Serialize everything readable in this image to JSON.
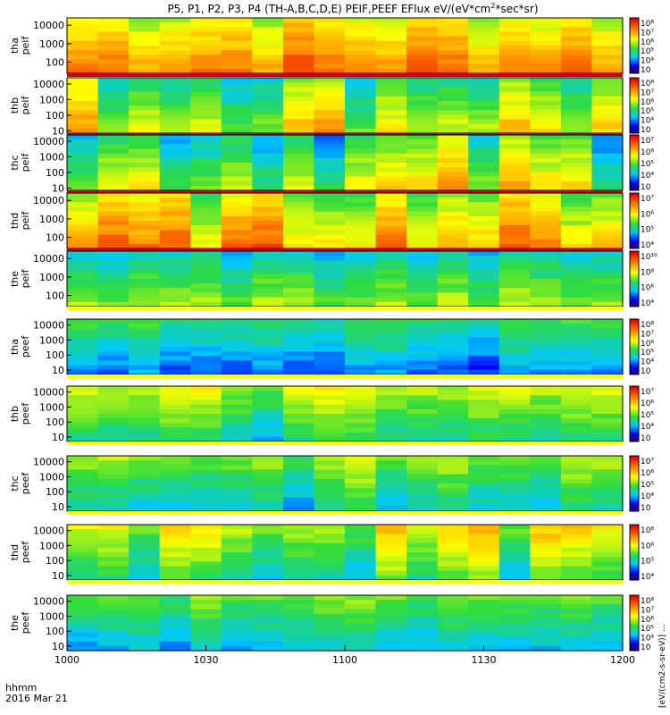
{
  "title": "P5, P1, P2, P3, P4 (TH-A,B,C,D,E) PEIF,PEEF EFlux eV/(eV*cm",
  "title_sup": "2",
  "title_tail": "*sec*sr)",
  "colorbar_unit_label": "[eV/(cm2-s-sr-eV)] ...",
  "time_axis": {
    "tick_labels": [
      "1000",
      "1030",
      "1100",
      "1130",
      "1200"
    ],
    "prefix_label": "hhmm",
    "date_label": "2016 Mar 21",
    "range_minutes": [
      0,
      120
    ]
  },
  "colors": {
    "low": "#1a0080",
    "mid": "#32c832",
    "high": "#e60000",
    "bar_red": "#cc0000",
    "bar_yellow": "#ffff00"
  },
  "chart_data": [
    {
      "type": "heatmap",
      "panel": "tha-peif",
      "ylabel": [
        "tha",
        "peif"
      ],
      "yticks": [
        "10000",
        "1000",
        "100"
      ],
      "cbar_ticks": [
        "10⁸",
        "10⁷",
        "10⁶",
        "10⁵",
        "10⁴",
        "10⁳"
      ],
      "ylog": true,
      "yrange": [
        25,
        25000
      ],
      "level": 0.72,
      "variation": 0.2,
      "bottom_band": "red"
    },
    {
      "type": "heatmap",
      "panel": "thb-peif",
      "ylabel": [
        "thb",
        "peif"
      ],
      "yticks": [
        "10000",
        "1000",
        "100",
        "10"
      ],
      "cbar_ticks": [
        "10⁸",
        "10⁷",
        "10⁶",
        "10⁵",
        "10⁴",
        "10⁳"
      ],
      "ylog": true,
      "yrange": [
        7,
        25000
      ],
      "level": 0.55,
      "variation": 0.35,
      "bottom_band": "red"
    },
    {
      "type": "heatmap",
      "panel": "thc-peif",
      "ylabel": [
        "thc",
        "peif"
      ],
      "yticks": [
        "10000",
        "1000",
        "100",
        "10"
      ],
      "cbar_ticks": [
        "10⁷",
        "10⁶",
        "10⁵",
        "10⁴",
        "10⁳"
      ],
      "ylog": true,
      "yrange": [
        7,
        25000
      ],
      "level": 0.5,
      "variation": 0.4,
      "bottom_band": "red"
    },
    {
      "type": "heatmap",
      "panel": "thd-peif",
      "ylabel": [
        "thd",
        "peif"
      ],
      "yticks": [
        "10000",
        "1000",
        "100"
      ],
      "cbar_ticks": [
        "10⁷",
        "10⁶",
        "10⁵",
        "10⁴"
      ],
      "ylog": true,
      "yrange": [
        25,
        25000
      ],
      "level": 0.65,
      "variation": 0.25,
      "bottom_band": "red"
    },
    {
      "type": "heatmap",
      "panel": "the-peif",
      "ylabel": [
        "the",
        "peif"
      ],
      "yticks": [
        "10000",
        "1000",
        "100"
      ],
      "cbar_ticks": [
        "10¹⁰",
        "10⁸",
        "10⁶",
        "10⁴"
      ],
      "ylog": true,
      "yrange": [
        25,
        25000
      ],
      "level": 0.42,
      "variation": 0.12,
      "bottom_band": "yellow"
    },
    {
      "type": "heatmap",
      "panel": "tha-peef",
      "ylabel": [
        "tha",
        "peef"
      ],
      "yticks": [
        "10000",
        "1000",
        "100",
        "10"
      ],
      "cbar_ticks": [
        "10⁸",
        "10⁷",
        "10⁶",
        "10⁵",
        "10⁴",
        "10⁳"
      ],
      "ylog": true,
      "yrange": [
        5,
        25000
      ],
      "level": 0.32,
      "variation": 0.15,
      "bottom_band": "yellow"
    },
    {
      "type": "heatmap",
      "panel": "thb-peef",
      "ylabel": [
        "thb",
        "peef"
      ],
      "yticks": [
        "10000",
        "1000",
        "100",
        "10"
      ],
      "cbar_ticks": [
        "10⁷",
        "10⁶",
        "10⁵",
        "10⁴",
        "10⁳"
      ],
      "ylog": true,
      "yrange": [
        5,
        25000
      ],
      "level": 0.45,
      "variation": 0.2,
      "bottom_band": "yellow"
    },
    {
      "type": "heatmap",
      "panel": "thc-peef",
      "ylabel": [
        "thc",
        "peef"
      ],
      "yticks": [
        "10000",
        "1000",
        "100",
        "10"
      ],
      "cbar_ticks": [
        "10⁷",
        "10⁶",
        "10⁵",
        "10⁴",
        "10⁳"
      ],
      "ylog": true,
      "yrange": [
        5,
        25000
      ],
      "level": 0.42,
      "variation": 0.2,
      "bottom_band": "yellow"
    },
    {
      "type": "heatmap",
      "panel": "thd-peef",
      "ylabel": [
        "thd",
        "peef"
      ],
      "yticks": [
        "10000",
        "1000",
        "100",
        "10"
      ],
      "cbar_ticks": [
        "10⁸",
        "10⁶",
        "10⁵",
        "10⁴"
      ],
      "ylog": true,
      "yrange": [
        5,
        25000
      ],
      "level": 0.5,
      "variation": 0.25,
      "bottom_band": "yellow"
    },
    {
      "type": "heatmap",
      "panel": "the-peef",
      "ylabel": [
        "the",
        "peef"
      ],
      "yticks": [
        "10000",
        "1000",
        "100",
        "10"
      ],
      "cbar_ticks": [
        "10⁸",
        "10⁷",
        "10⁶",
        "10⁵",
        "10⁴",
        "10⁳"
      ],
      "ylog": true,
      "yrange": [
        5,
        25000
      ],
      "level": 0.38,
      "variation": 0.1,
      "bottom_band": "none"
    }
  ]
}
